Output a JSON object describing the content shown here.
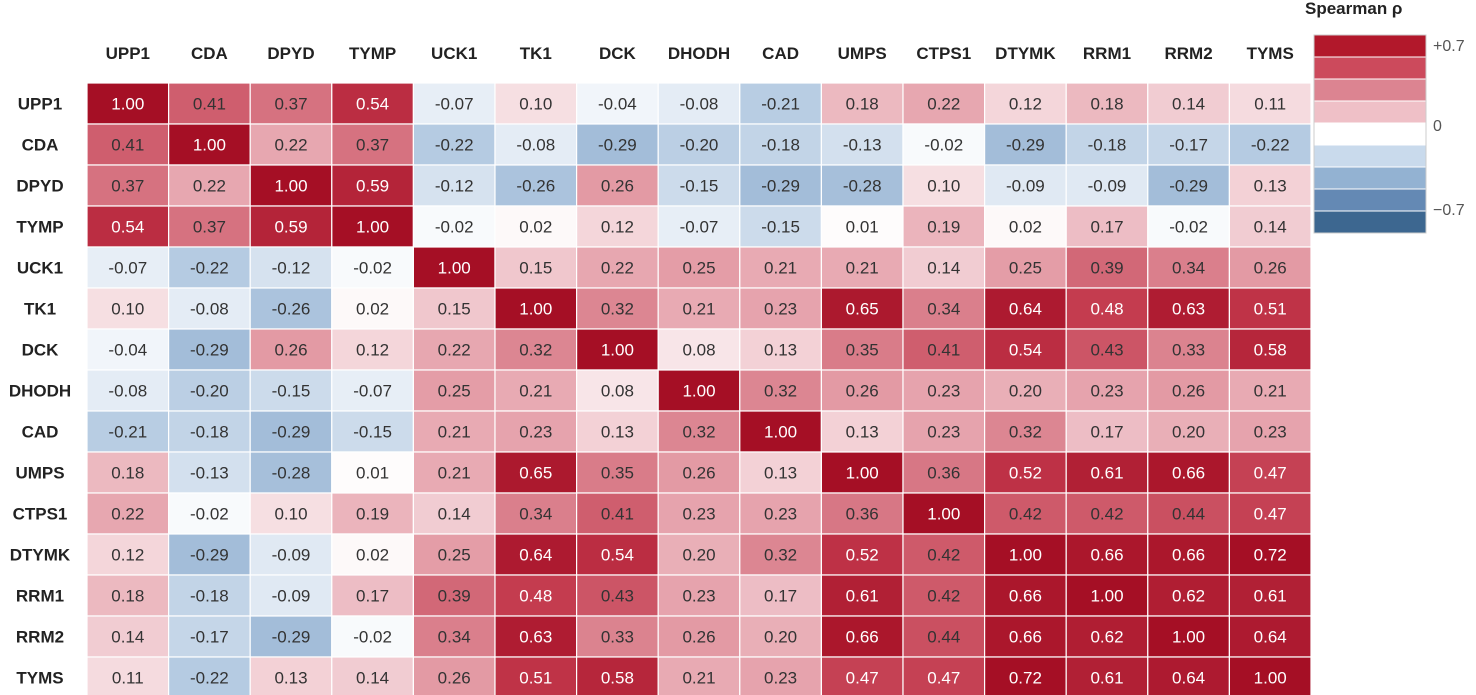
{
  "chart_data": {
    "type": "heatmap",
    "title": "",
    "xlabel": "",
    "ylabel": "",
    "labels": [
      "UPP1",
      "CDA",
      "DPYD",
      "TYMP",
      "UCK1",
      "TK1",
      "DCK",
      "DHODH",
      "CAD",
      "UMPS",
      "CTPS1",
      "DTYMK",
      "RRM1",
      "RRM2",
      "TYMS"
    ],
    "matrix": [
      [
        1.0,
        0.41,
        0.37,
        0.54,
        -0.07,
        0.1,
        -0.04,
        -0.08,
        -0.21,
        0.18,
        0.22,
        0.12,
        0.18,
        0.14,
        0.11
      ],
      [
        0.41,
        1.0,
        0.22,
        0.37,
        -0.22,
        -0.08,
        -0.29,
        -0.2,
        -0.18,
        -0.13,
        -0.02,
        -0.29,
        -0.18,
        -0.17,
        -0.22
      ],
      [
        0.37,
        0.22,
        1.0,
        0.59,
        -0.12,
        -0.26,
        0.26,
        -0.15,
        -0.29,
        -0.28,
        0.1,
        -0.09,
        -0.09,
        -0.29,
        0.13
      ],
      [
        0.54,
        0.37,
        0.59,
        1.0,
        -0.02,
        0.02,
        0.12,
        -0.07,
        -0.15,
        0.01,
        0.19,
        0.02,
        0.17,
        -0.02,
        0.14
      ],
      [
        -0.07,
        -0.22,
        -0.12,
        -0.02,
        1.0,
        0.15,
        0.22,
        0.25,
        0.21,
        0.21,
        0.14,
        0.25,
        0.39,
        0.34,
        0.26
      ],
      [
        0.1,
        -0.08,
        -0.26,
        0.02,
        0.15,
        1.0,
        0.32,
        0.21,
        0.23,
        0.65,
        0.34,
        0.64,
        0.48,
        0.63,
        0.51
      ],
      [
        -0.04,
        -0.29,
        0.26,
        0.12,
        0.22,
        0.32,
        1.0,
        0.08,
        0.13,
        0.35,
        0.41,
        0.54,
        0.43,
        0.33,
        0.58
      ],
      [
        -0.08,
        -0.2,
        -0.15,
        -0.07,
        0.25,
        0.21,
        0.08,
        1.0,
        0.32,
        0.26,
        0.23,
        0.2,
        0.23,
        0.26,
        0.21
      ],
      [
        -0.21,
        -0.18,
        -0.29,
        -0.15,
        0.21,
        0.23,
        0.13,
        0.32,
        1.0,
        0.13,
        0.23,
        0.32,
        0.17,
        0.2,
        0.23
      ],
      [
        0.18,
        -0.13,
        -0.28,
        0.01,
        0.21,
        0.65,
        0.35,
        0.26,
        0.13,
        1.0,
        0.36,
        0.52,
        0.61,
        0.66,
        0.47
      ],
      [
        0.22,
        -0.02,
        0.1,
        0.19,
        0.14,
        0.34,
        0.41,
        0.23,
        0.23,
        0.36,
        1.0,
        0.42,
        0.42,
        0.44,
        0.47
      ],
      [
        0.12,
        -0.29,
        -0.09,
        0.02,
        0.25,
        0.64,
        0.54,
        0.2,
        0.32,
        0.52,
        0.42,
        1.0,
        0.66,
        0.66,
        0.72
      ],
      [
        0.18,
        -0.18,
        -0.09,
        0.17,
        0.39,
        0.48,
        0.43,
        0.23,
        0.17,
        0.61,
        0.42,
        0.66,
        1.0,
        0.62,
        0.61
      ],
      [
        0.14,
        -0.17,
        -0.29,
        -0.02,
        0.34,
        0.63,
        0.33,
        0.26,
        0.2,
        0.66,
        0.44,
        0.66,
        0.62,
        1.0,
        0.64
      ],
      [
        0.11,
        -0.22,
        0.13,
        0.14,
        0.26,
        0.51,
        0.58,
        0.21,
        0.23,
        0.47,
        0.47,
        0.72,
        0.61,
        0.64,
        1.0
      ]
    ],
    "color_range": [
      -0.7,
      0.7
    ],
    "legend": {
      "title": "Spearman ρ",
      "ticks": [
        "+0.7",
        "0",
        "−0.7"
      ],
      "placement": "top-right",
      "colors": [
        "#b2182b",
        "#cc4a5c",
        "#dc8491",
        "#efc0c7",
        "#ffffff",
        "#c9daec",
        "#93b2d2",
        "#6489b4",
        "#3d6790"
      ]
    }
  }
}
